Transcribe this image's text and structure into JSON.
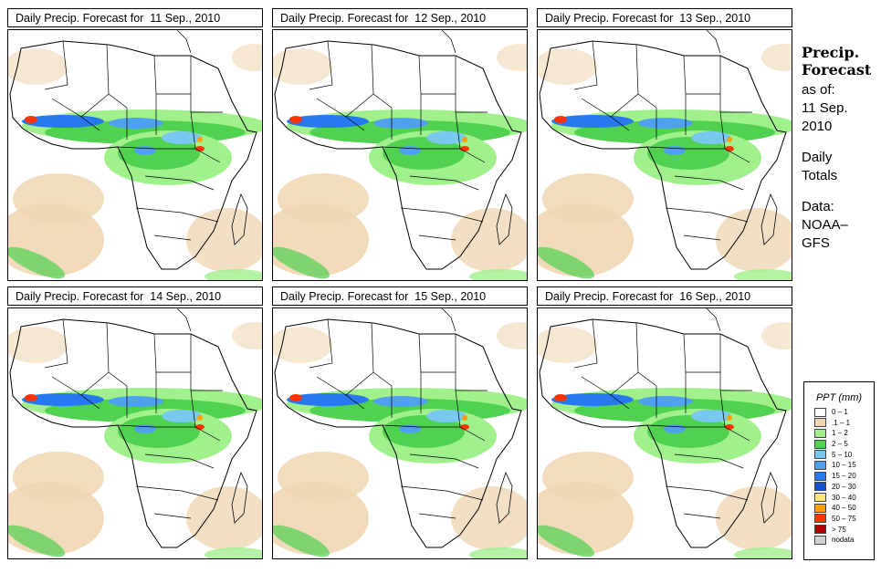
{
  "panels": [
    {
      "title_prefix": "Daily Precip. Forecast for",
      "date": "11 Sep., 2010"
    },
    {
      "title_prefix": "Daily Precip. Forecast for",
      "date": "12 Sep., 2010"
    },
    {
      "title_prefix": "Daily Precip. Forecast for",
      "date": "13 Sep., 2010"
    },
    {
      "title_prefix": "Daily Precip. Forecast for",
      "date": "14 Sep., 2010"
    },
    {
      "title_prefix": "Daily Precip. Forecast for",
      "date": "15 Sep., 2010"
    },
    {
      "title_prefix": "Daily Precip. Forecast for",
      "date": "16 Sep., 2010"
    }
  ],
  "sidebar": {
    "heading_line1": "Precip.",
    "heading_line2": "Forecast",
    "as_of": "as of:",
    "date_line1": "11 Sep.",
    "date_line2": "2010",
    "daily_line1": "Daily",
    "daily_line2": "Totals",
    "data_label": "Data:",
    "source_line1": "NOAA–",
    "source_line2": "GFS"
  },
  "legend": {
    "title": "PPT (mm)",
    "items": [
      {
        "label": "0 – 1",
        "color": "#ffffff"
      },
      {
        "label": ".1 – 1",
        "color": "#f0d7b4"
      },
      {
        "label": "1 – 2",
        "color": "#a0f08c"
      },
      {
        "label": "2 – 5",
        "color": "#50d250"
      },
      {
        "label": "5 – 10",
        "color": "#78c8f0"
      },
      {
        "label": "10 – 15",
        "color": "#50a0f0"
      },
      {
        "label": "15 – 20",
        "color": "#2878f0"
      },
      {
        "label": "20 – 30",
        "color": "#1450c8"
      },
      {
        "label": "30 – 40",
        "color": "#ffe678"
      },
      {
        "label": "40 – 50",
        "color": "#ffa000"
      },
      {
        "label": "50 – 75",
        "color": "#ff3200"
      },
      {
        "label": "> 75",
        "color": "#b40000"
      },
      {
        "label": "nodata",
        "color": "#d2d2d2"
      }
    ]
  }
}
